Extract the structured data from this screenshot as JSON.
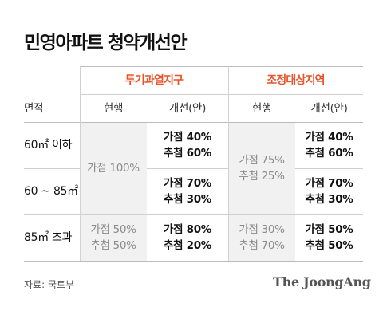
{
  "title": "민영아파트 청약개선안",
  "colors": {
    "accent": "#e8542a",
    "shade": "#f1f1f1",
    "muted": "#8a8a8a"
  },
  "chart_data": {
    "type": "table",
    "row_header_label": "면적",
    "groups": [
      {
        "label": "투기과열지구",
        "columns": [
          "현행",
          "개선(안)"
        ]
      },
      {
        "label": "조정대상지역",
        "columns": [
          "현행",
          "개선(안)"
        ]
      }
    ],
    "rows": [
      {
        "label": "60㎡ 이하",
        "proposed_overheated": [
          "가점 40%",
          "추첨 60%"
        ],
        "proposed_regulated": [
          "가점 40%",
          "추첨 60%"
        ]
      },
      {
        "label": "60 ~ 85㎡",
        "proposed_overheated": [
          "가점 70%",
          "추첨 30%"
        ],
        "proposed_regulated": [
          "가점 70%",
          "추첨 30%"
        ]
      },
      {
        "label": "85㎡ 초과",
        "proposed_overheated": [
          "가점 80%",
          "추첨 20%"
        ],
        "proposed_regulated": [
          "가점 50%",
          "추첨 50%"
        ]
      }
    ],
    "current_overheated": {
      "up_to_85": [
        "가점 100%"
      ],
      "over_85": [
        "가점 50%",
        "추첨 50%"
      ]
    },
    "current_regulated": {
      "up_to_85": [
        "가점 75%",
        "추첨 25%"
      ],
      "over_85": [
        "가점 30%",
        "추첨 70%"
      ]
    }
  },
  "source": "자료: 국토부",
  "brand": "The JoongAng"
}
